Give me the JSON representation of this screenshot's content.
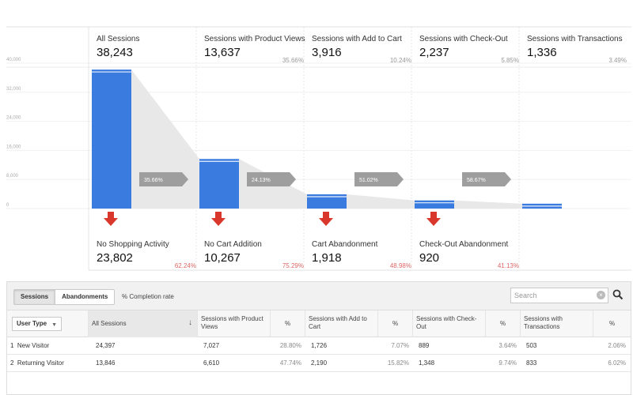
{
  "chart_data": {
    "type": "bar",
    "ylim": [
      0,
      40000
    ],
    "yticks": [
      "40,000",
      "32,000",
      "24,000",
      "16,000",
      "8,000",
      "0"
    ],
    "categories": [
      "All Sessions",
      "Sessions with Product Views",
      "Sessions with Add to Cart",
      "Sessions with Check-Out",
      "Sessions with Transactions"
    ],
    "stages": [
      {
        "label": "All Sessions",
        "value": 38243,
        "value_text": "38,243",
        "pct": ""
      },
      {
        "label": "Sessions with Product Views",
        "value": 13637,
        "value_text": "13,637",
        "pct": "35.66%"
      },
      {
        "label": "Sessions with Add to Cart",
        "value": 3916,
        "value_text": "3,916",
        "pct": "10.24%"
      },
      {
        "label": "Sessions with Check-Out",
        "value": 2237,
        "value_text": "2,237",
        "pct": "5.85%"
      },
      {
        "label": "Sessions with Transactions",
        "value": 1336,
        "value_text": "1,336",
        "pct": "3.49%"
      }
    ],
    "transitions": [
      "35.66%",
      "24.13%",
      "51.02%",
      "58.67%"
    ],
    "abandonments": [
      {
        "label": "No Shopping Activity",
        "value_text": "23,802",
        "pct": "62.24%"
      },
      {
        "label": "No Cart Addition",
        "value_text": "10,267",
        "pct": "75.29%"
      },
      {
        "label": "Cart Abandonment",
        "value_text": "1,918",
        "pct": "48.98%"
      },
      {
        "label": "Check-Out Abandonment",
        "value_text": "920",
        "pct": "41.13%"
      }
    ],
    "colors": {
      "bar": "#3a7be0",
      "arrow": "#d9372b",
      "transition": "#9e9e9e",
      "funnel": "#e8e8e8"
    }
  },
  "toolbar": {
    "sessions_tab": "Sessions",
    "abandonments_tab": "Abandonments",
    "completion_rate": "% Completion rate",
    "search_placeholder": "Search"
  },
  "table": {
    "dimension": "User Type",
    "headers": {
      "all_sessions": "All Sessions",
      "product_views": "Sessions with Product Views",
      "add_to_cart": "Sessions with Add to Cart",
      "check_out": "Sessions with Check-Out",
      "transactions": "Sessions with Transactions",
      "pct": "%"
    },
    "rows": [
      {
        "index": "1",
        "name": "New Visitor",
        "all": "24,397",
        "pv": "7,027",
        "pv_pct": "28.80%",
        "atc": "1,726",
        "atc_pct": "7.07%",
        "co": "889",
        "co_pct": "3.64%",
        "tr": "503",
        "tr_pct": "2.06%"
      },
      {
        "index": "2",
        "name": "Returning Visitor",
        "all": "13,846",
        "pv": "6,610",
        "pv_pct": "47.74%",
        "atc": "2,190",
        "atc_pct": "15.82%",
        "co": "1,348",
        "co_pct": "9.74%",
        "tr": "833",
        "tr_pct": "6.02%"
      }
    ]
  }
}
